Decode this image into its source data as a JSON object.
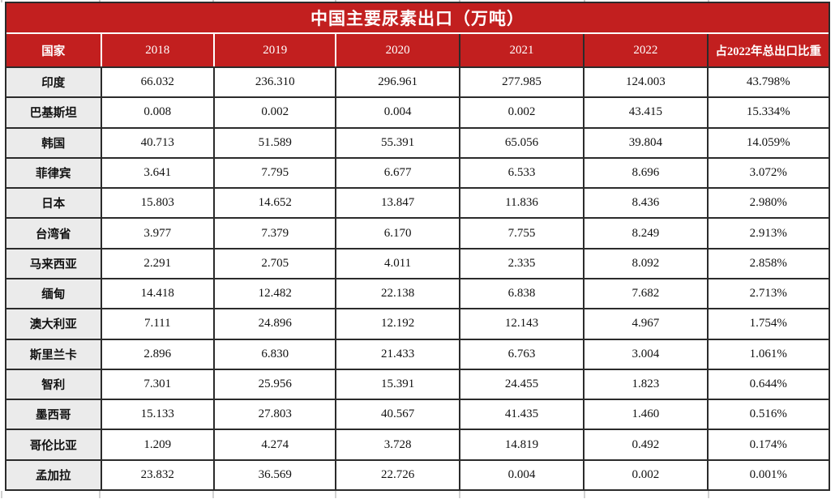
{
  "title": "中国主要尿素出口（万吨）",
  "table": {
    "columns": [
      "国家",
      "2018",
      "2019",
      "2020",
      "2021",
      "2022",
      "占2022年总出口比重"
    ],
    "rows": [
      {
        "country": "印度",
        "values": [
          "66.032",
          "236.310",
          "296.961",
          "277.985",
          "124.003",
          "43.798%"
        ]
      },
      {
        "country": "巴基斯坦",
        "values": [
          "0.008",
          "0.002",
          "0.004",
          "0.002",
          "43.415",
          "15.334%"
        ]
      },
      {
        "country": "韩国",
        "values": [
          "40.713",
          "51.589",
          "55.391",
          "65.056",
          "39.804",
          "14.059%"
        ]
      },
      {
        "country": "菲律宾",
        "values": [
          "3.641",
          "7.795",
          "6.677",
          "6.533",
          "8.696",
          "3.072%"
        ]
      },
      {
        "country": "日本",
        "values": [
          "15.803",
          "14.652",
          "13.847",
          "11.836",
          "8.436",
          "2.980%"
        ]
      },
      {
        "country": "台湾省",
        "values": [
          "3.977",
          "7.379",
          "6.170",
          "7.755",
          "8.249",
          "2.913%"
        ]
      },
      {
        "country": "马来西亚",
        "values": [
          "2.291",
          "2.705",
          "4.011",
          "2.335",
          "8.092",
          "2.858%"
        ]
      },
      {
        "country": "缅甸",
        "values": [
          "14.418",
          "12.482",
          "22.138",
          "6.838",
          "7.682",
          "2.713%"
        ]
      },
      {
        "country": "澳大利亚",
        "values": [
          "7.111",
          "24.896",
          "12.192",
          "12.143",
          "4.967",
          "1.754%"
        ]
      },
      {
        "country": "斯里兰卡",
        "values": [
          "2.896",
          "6.830",
          "21.433",
          "6.763",
          "3.004",
          "1.061%"
        ]
      },
      {
        "country": "智利",
        "values": [
          "7.301",
          "25.956",
          "15.391",
          "24.455",
          "1.823",
          "0.644%"
        ]
      },
      {
        "country": "墨西哥",
        "values": [
          "15.133",
          "27.803",
          "40.567",
          "41.435",
          "1.460",
          "0.516%"
        ]
      },
      {
        "country": "哥伦比亚",
        "values": [
          "1.209",
          "4.274",
          "3.728",
          "14.819",
          "0.492",
          "0.174%"
        ]
      },
      {
        "country": "孟加拉",
        "values": [
          "23.832",
          "36.569",
          "22.726",
          "0.004",
          "0.002",
          "0.001%"
        ]
      }
    ]
  },
  "colors": {
    "header_red": "#c21f1f",
    "label_column_bg": "#ebebeb",
    "border_dark": "#2b2b2b",
    "title_text": "#ffffff"
  }
}
